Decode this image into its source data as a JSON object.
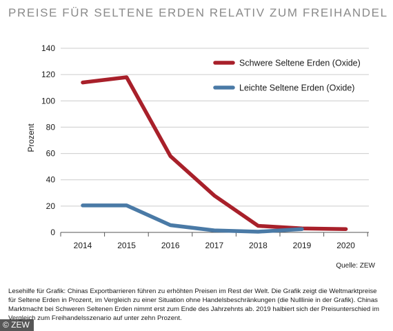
{
  "header": {
    "title": "PREISE FÜR SELTENE ERDEN RELATIV ZUM FREIHANDEL"
  },
  "source": "Quelle: ZEW",
  "caption": "Lesehilfe für Grafik: Chinas Exportbarrieren führen zu erhöhten Preisen im Rest der Welt. Die Grafik zeigt die Weltmarktpreise für Seltene Erden in Prozent, im Vergleich zu einer Situation ohne Handelsbeschränkungen (die Nulllinie in der Grafik). Chinas Marktmacht bei Schweren Seltenen Erden nimmt erst zum Ende des Jahrzehnts ab. 2019 halbiert sich der Preisunterschied im Vergleich zum Freihandelsszenario auf unter zehn Prozent.",
  "copyright": "© ZEW",
  "colors": {
    "heavy": "#a8202a",
    "light": "#4a7aa6",
    "grid": "#cccccc",
    "axis": "#555555"
  },
  "chart_data": {
    "type": "line",
    "title": "PREISE FÜR SELTENE ERDEN RELATIV ZUM FREIHANDEL",
    "xlabel": "",
    "ylabel": "Prozent",
    "x": [
      "2014",
      "2015",
      "2016",
      "2017",
      "2018",
      "2019",
      "2020"
    ],
    "ylim": [
      0,
      140
    ],
    "yticks": [
      0,
      20,
      40,
      60,
      80,
      100,
      120,
      140
    ],
    "grid": "horizontal",
    "legend_position": "top-right",
    "series": [
      {
        "name": "Schwere Seltene Erden (Oxide)",
        "color": "#a8202a",
        "values": [
          114,
          118,
          58,
          28,
          5,
          3,
          2.5
        ]
      },
      {
        "name": "Leichte Seltene Erden (Oxide)",
        "color": "#4a7aa6",
        "values": [
          20.5,
          20.5,
          5.5,
          1.5,
          0.5,
          2.5,
          null
        ]
      }
    ]
  }
}
